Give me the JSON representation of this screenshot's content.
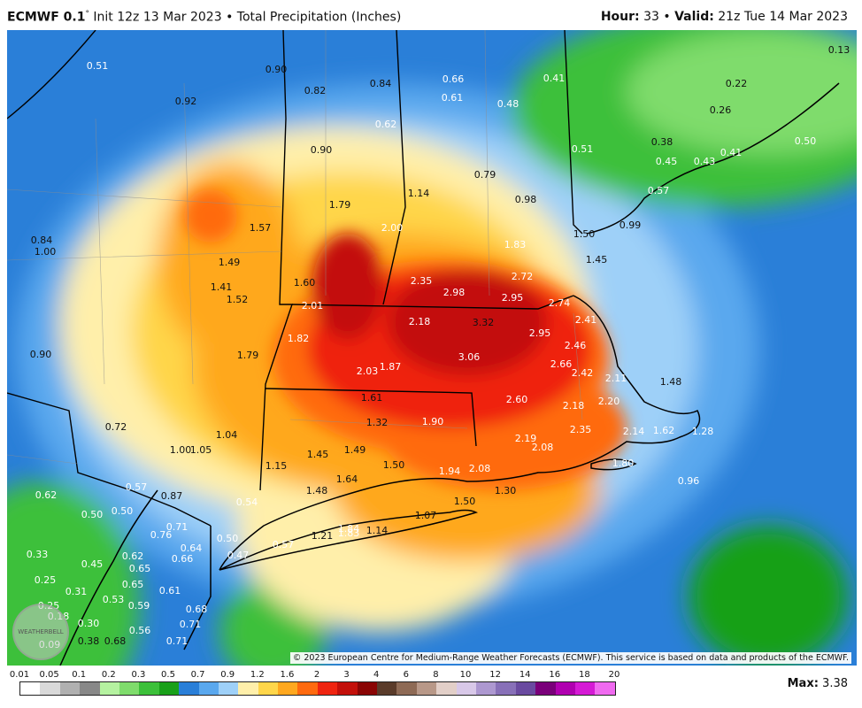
{
  "header": {
    "model": "ECMWF 0.1",
    "degree": "°",
    "init": "Init 12z 13 Mar 2023",
    "sep": "•",
    "product": "Total Precipitation (Inches)",
    "hour_label": "Hour:",
    "hour_value": "33",
    "valid_label": "Valid:",
    "valid_value": "21z Tue 14 Mar 2023"
  },
  "copyright": "© 2023 European Centre for Medium-Range Weather Forecasts (ECMWF). This service is based on data and products of the ECMWF.",
  "watermark": "WEATHERBELL",
  "max": {
    "label": "Max:",
    "value": "3.38"
  },
  "legend": {
    "ticks": [
      "0.01",
      "0.05",
      "0.1",
      "0.2",
      "0.3",
      "0.5",
      "0.7",
      "0.9",
      "1.2",
      "1.6",
      "2",
      "3",
      "4",
      "6",
      "8",
      "10",
      "12",
      "14",
      "16",
      "18",
      "20"
    ],
    "colors": [
      "#ffffff",
      "#d9d9d9",
      "#b0b0b0",
      "#888888",
      "#b5f2a0",
      "#7fdc6c",
      "#3cc03a",
      "#19a019",
      "#2a7fd8",
      "#5aa8ee",
      "#9ed0f8",
      "#ffefaa",
      "#ffd64a",
      "#ffa81f",
      "#ff6a0f",
      "#ef2410",
      "#c3100a",
      "#8a0504",
      "#5a3b2a",
      "#8e6a55",
      "#b89888",
      "#e2cfc8",
      "#d8c8e8",
      "#ad98d0",
      "#8870b8",
      "#6a4aa0",
      "#7a007a",
      "#b000b0",
      "#d51ad5",
      "#f06af0"
    ]
  },
  "cities_values": [
    {
      "t": "0.51",
      "c": "w"
    },
    {
      "t": "0.90",
      "c": "k"
    },
    {
      "t": "0.82",
      "c": "k"
    },
    {
      "t": "0.84",
      "c": "k"
    },
    {
      "t": "0.66",
      "c": "w"
    },
    {
      "t": "0.61",
      "c": "w"
    },
    {
      "t": "0.41",
      "c": "w"
    },
    {
      "t": "0.13",
      "c": "k"
    },
    {
      "t": "0.22",
      "c": "k"
    },
    {
      "t": "0.26",
      "c": "k"
    },
    {
      "t": "0.92",
      "c": "k"
    },
    {
      "t": "0.48",
      "c": "w"
    },
    {
      "t": "0.62",
      "c": "w"
    },
    {
      "t": "0.38",
      "c": "k"
    },
    {
      "t": "0.50",
      "c": "w"
    },
    {
      "t": "0.51",
      "c": "w"
    },
    {
      "t": "0.45",
      "c": "w"
    },
    {
      "t": "0.43",
      "c": "w"
    },
    {
      "t": "0.41",
      "c": "w"
    },
    {
      "t": "0.90",
      "c": "k"
    },
    {
      "t": "0.79",
      "c": "k"
    },
    {
      "t": "0.57",
      "c": "w"
    },
    {
      "t": "1.14",
      "c": "k"
    },
    {
      "t": "0.98",
      "c": "k"
    },
    {
      "t": "1.79",
      "c": "k"
    },
    {
      "t": "2.00",
      "c": "w"
    },
    {
      "t": "0.84",
      "c": "k"
    },
    {
      "t": "1.00",
      "c": "k"
    },
    {
      "t": "1.57",
      "c": "k"
    },
    {
      "t": "1.83",
      "c": "w"
    },
    {
      "t": "1.50",
      "c": "k"
    },
    {
      "t": "0.99",
      "c": "k"
    },
    {
      "t": "1.45",
      "c": "k"
    },
    {
      "t": "1.49",
      "c": "k"
    },
    {
      "t": "2.35",
      "c": "w"
    },
    {
      "t": "2.98",
      "c": "w"
    },
    {
      "t": "2.72",
      "c": "w"
    },
    {
      "t": "1.41",
      "c": "k"
    },
    {
      "t": "1.60",
      "c": "k"
    },
    {
      "t": "1.52",
      "c": "k"
    },
    {
      "t": "2.95",
      "c": "w"
    },
    {
      "t": "2.74",
      "c": "w"
    },
    {
      "t": "2.01",
      "c": "w"
    },
    {
      "t": "2.41",
      "c": "w"
    },
    {
      "t": "2.18",
      "c": "w"
    },
    {
      "t": "3.32",
      "c": "k"
    },
    {
      "t": "2.95",
      "c": "w"
    },
    {
      "t": "1.82",
      "c": "w"
    },
    {
      "t": "2.46",
      "c": "w"
    },
    {
      "t": "0.90",
      "c": "k"
    },
    {
      "t": "1.79",
      "c": "k"
    },
    {
      "t": "3.06",
      "c": "w"
    },
    {
      "t": "2.66",
      "c": "w"
    },
    {
      "t": "2.03",
      "c": "w"
    },
    {
      "t": "1.87",
      "c": "w"
    },
    {
      "t": "2.42",
      "c": "w"
    },
    {
      "t": "2.11",
      "c": "w"
    },
    {
      "t": "1.48",
      "c": "k"
    },
    {
      "t": "1.61",
      "c": "k"
    },
    {
      "t": "2.60",
      "c": "w"
    },
    {
      "t": "2.18",
      "c": "w"
    },
    {
      "t": "2.20",
      "c": "w"
    },
    {
      "t": "0.72",
      "c": "k"
    },
    {
      "t": "1.32",
      "c": "k"
    },
    {
      "t": "1.90",
      "c": "w"
    },
    {
      "t": "2.35",
      "c": "w"
    },
    {
      "t": "1.04",
      "c": "k"
    },
    {
      "t": "2.19",
      "c": "w"
    },
    {
      "t": "2.14",
      "c": "w"
    },
    {
      "t": "1.62",
      "c": "w"
    },
    {
      "t": "1.28",
      "c": "w"
    },
    {
      "t": "1.00",
      "c": "k"
    },
    {
      "t": "1.05",
      "c": "k"
    },
    {
      "t": "1.45",
      "c": "k"
    },
    {
      "t": "1.49",
      "c": "k"
    },
    {
      "t": "2.08",
      "c": "w"
    },
    {
      "t": "1.15",
      "c": "k"
    },
    {
      "t": "1.50",
      "c": "k"
    },
    {
      "t": "1.94",
      "c": "w"
    },
    {
      "t": "2.08",
      "c": "w"
    },
    {
      "t": "1.80",
      "c": "w"
    },
    {
      "t": "0.96",
      "c": "w"
    },
    {
      "t": "0.57",
      "c": "w"
    },
    {
      "t": "1.64",
      "c": "k"
    },
    {
      "t": "1.48",
      "c": "k"
    },
    {
      "t": "0.62",
      "c": "w"
    },
    {
      "t": "0.87",
      "c": "k"
    },
    {
      "t": "0.54",
      "c": "w"
    },
    {
      "t": "1.50",
      "c": "k"
    },
    {
      "t": "1.30",
      "c": "k"
    },
    {
      "t": "0.50",
      "c": "w"
    },
    {
      "t": "0.50",
      "c": "w"
    },
    {
      "t": "1.07",
      "c": "k"
    },
    {
      "t": "0.71",
      "c": "w"
    },
    {
      "t": "0.76",
      "c": "w"
    },
    {
      "t": "1.84",
      "c": "w"
    },
    {
      "t": "1.83",
      "c": "w"
    },
    {
      "t": "1.14",
      "c": "k"
    },
    {
      "t": "0.64",
      "c": "w"
    },
    {
      "t": "0.50",
      "c": "w"
    },
    {
      "t": "1.21",
      "c": "k"
    },
    {
      "t": "0.33",
      "c": "w"
    },
    {
      "t": "0.62",
      "c": "w"
    },
    {
      "t": "0.66",
      "c": "w"
    },
    {
      "t": "0.47",
      "c": "w"
    },
    {
      "t": "0.57",
      "c": "w"
    },
    {
      "t": "0.45",
      "c": "w"
    },
    {
      "t": "0.65",
      "c": "w"
    },
    {
      "t": "0.25",
      "c": "w"
    },
    {
      "t": "0.65",
      "c": "w"
    },
    {
      "t": "0.31",
      "c": "w"
    },
    {
      "t": "0.61",
      "c": "w"
    },
    {
      "t": "0.53",
      "c": "w"
    },
    {
      "t": "0.25",
      "c": "w"
    },
    {
      "t": "0.59",
      "c": "w"
    },
    {
      "t": "0.68",
      "c": "w"
    },
    {
      "t": "0.18",
      "c": "w"
    },
    {
      "t": "0.30",
      "c": "w"
    },
    {
      "t": "0.71",
      "c": "w"
    },
    {
      "t": "0.56",
      "c": "w"
    },
    {
      "t": "0.38",
      "c": "k"
    },
    {
      "t": "0.68",
      "c": "k"
    },
    {
      "t": "0.71",
      "c": "w"
    },
    {
      "t": "0.09",
      "c": "w"
    }
  ]
}
